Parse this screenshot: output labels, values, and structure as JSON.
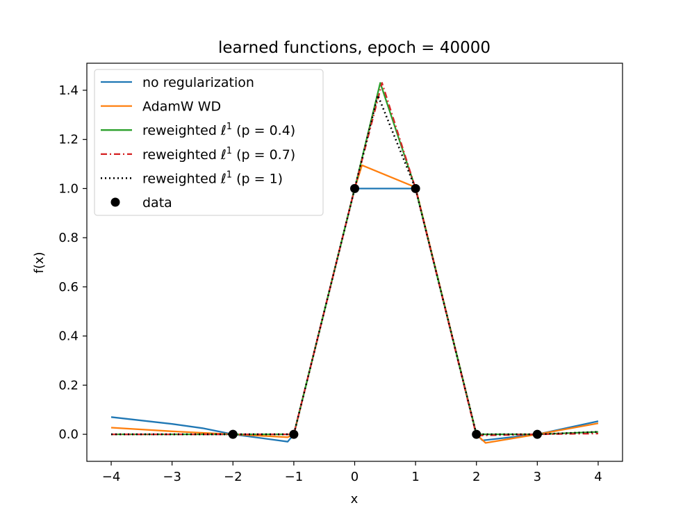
{
  "chart_data": {
    "type": "line",
    "title": "learned functions, epoch = 40000",
    "xlabel": "x",
    "ylabel": "f(x)",
    "xlim": [
      -4.4,
      4.4
    ],
    "ylim": [
      -0.11,
      1.51
    ],
    "xticks": [
      -4,
      -3,
      -2,
      -1,
      0,
      1,
      2,
      3,
      4
    ],
    "xtick_labels": [
      "−4",
      "−3",
      "−2",
      "−1",
      "0",
      "1",
      "2",
      "3",
      "4"
    ],
    "yticks": [
      0.0,
      0.2,
      0.4,
      0.6,
      0.8,
      1.0,
      1.2,
      1.4
    ],
    "ytick_labels": [
      "0.0",
      "0.2",
      "0.4",
      "0.6",
      "0.8",
      "1.0",
      "1.2",
      "1.4"
    ],
    "grid": false,
    "legend_position": "upper-left",
    "series": [
      {
        "name": "no regularization",
        "legend_main": "no regularization",
        "legend_sup": "",
        "legend_tail": "",
        "color": "#1f77b4",
        "dash": "solid",
        "points": [
          [
            -4,
            0.07
          ],
          [
            -3,
            0.042
          ],
          [
            -2.5,
            0.025
          ],
          [
            -2,
            0.0
          ],
          [
            -1.1,
            -0.03
          ],
          [
            -1,
            0.0
          ],
          [
            0,
            1.0
          ],
          [
            1,
            1.0
          ],
          [
            2,
            0.0
          ],
          [
            2.1,
            -0.025
          ],
          [
            3,
            0.0
          ],
          [
            4,
            0.053
          ]
        ]
      },
      {
        "name": "AdamW WD",
        "legend_main": "AdamW WD",
        "legend_sup": "",
        "legend_tail": "",
        "color": "#ff7f0e",
        "dash": "solid",
        "points": [
          [
            -4,
            0.027
          ],
          [
            -3,
            0.012
          ],
          [
            -2,
            0.0
          ],
          [
            -1.1,
            -0.012
          ],
          [
            -1,
            0.0
          ],
          [
            0,
            1.0
          ],
          [
            0.12,
            1.095
          ],
          [
            1,
            1.005
          ],
          [
            2,
            0.0
          ],
          [
            2.15,
            -0.035
          ],
          [
            3,
            0.0
          ],
          [
            4,
            0.045
          ]
        ]
      },
      {
        "name": "reweighted ℓ1 (p = 0.4)",
        "legend_main": "reweighted ℓ",
        "legend_sup": "1",
        "legend_tail": " (p = 0.4)",
        "color": "#2ca02c",
        "dash": "solid",
        "points": [
          [
            -4,
            0.0
          ],
          [
            -2,
            0.0
          ],
          [
            -1,
            0.0
          ],
          [
            0,
            1.0
          ],
          [
            0.42,
            1.43
          ],
          [
            1,
            1.0
          ],
          [
            2,
            0.0
          ],
          [
            3,
            0.0
          ],
          [
            4,
            0.01
          ]
        ]
      },
      {
        "name": "reweighted ℓ1 (p = 0.7)",
        "legend_main": "reweighted ℓ",
        "legend_sup": "1",
        "legend_tail": " (p = 0.7)",
        "color": "#d62728",
        "dash": "dashdot",
        "points": [
          [
            -4,
            0.0
          ],
          [
            -2,
            0.0
          ],
          [
            -1,
            0.0
          ],
          [
            0,
            1.0
          ],
          [
            0.45,
            1.43
          ],
          [
            1,
            1.0
          ],
          [
            2,
            -0.005
          ],
          [
            3,
            0.0
          ],
          [
            4,
            0.003
          ]
        ]
      },
      {
        "name": "reweighted ℓ1 (p = 1)",
        "legend_main": "reweighted ℓ",
        "legend_sup": "1",
        "legend_tail": " (p = 1)",
        "color": "#000000",
        "dash": "dotted",
        "points": [
          [
            -4,
            0.0
          ],
          [
            -2,
            0.0
          ],
          [
            -1,
            0.0
          ],
          [
            0,
            1.0
          ],
          [
            0.38,
            1.38
          ],
          [
            1,
            1.0
          ],
          [
            2,
            0.0
          ],
          [
            3,
            0.0
          ],
          [
            4,
            0.01
          ]
        ]
      }
    ],
    "data_points": {
      "name": "data",
      "color": "#000000",
      "x": [
        -2,
        -1,
        0,
        1,
        2,
        3
      ],
      "y": [
        0,
        0,
        1,
        1,
        0,
        0
      ]
    }
  }
}
